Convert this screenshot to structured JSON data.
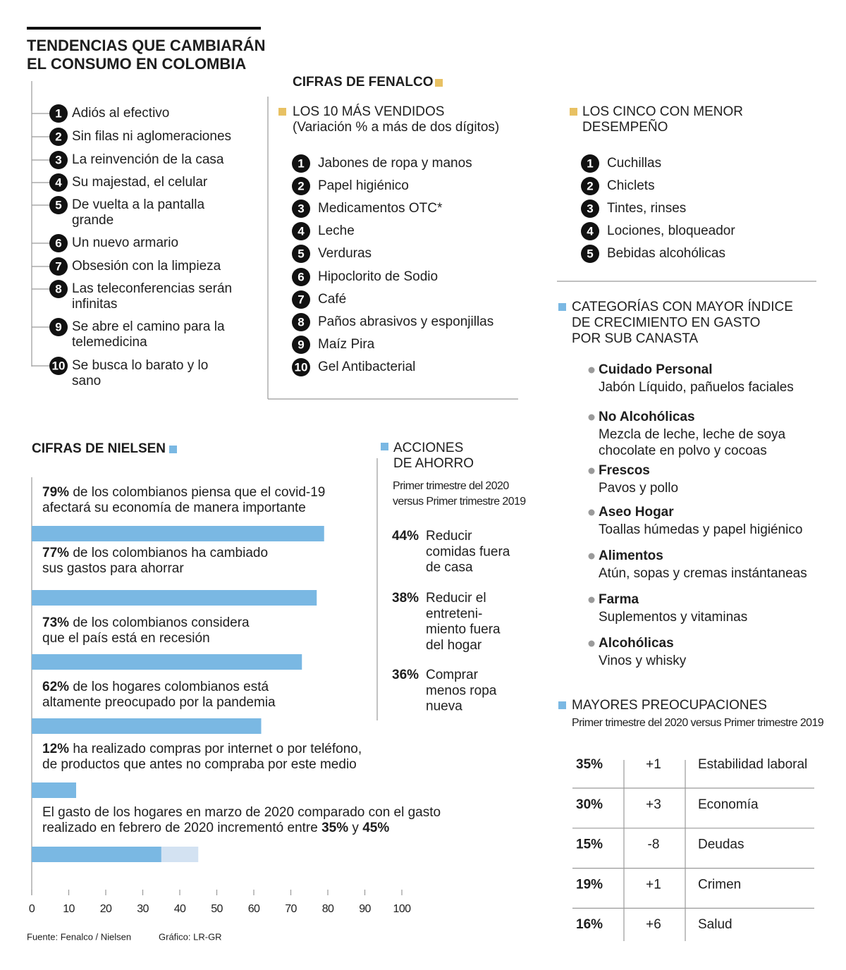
{
  "header": {
    "title_lines": [
      "TENDENCIAS QUE CAMBIARÁN",
      "EL CONSUMO EN COLOMBIA"
    ]
  },
  "trends": [
    {
      "n": 1,
      "lines": [
        "Adiós al efectivo"
      ]
    },
    {
      "n": 2,
      "lines": [
        "Sin filas ni aglomeraciones"
      ]
    },
    {
      "n": 3,
      "lines": [
        "La reinvención de la casa"
      ]
    },
    {
      "n": 4,
      "lines": [
        "Su majestad, el celular"
      ]
    },
    {
      "n": 5,
      "lines": [
        "De vuelta a la pantalla",
        "grande"
      ]
    },
    {
      "n": 6,
      "lines": [
        "Un nuevo armario"
      ]
    },
    {
      "n": 7,
      "lines": [
        "Obsesión con la limpieza"
      ]
    },
    {
      "n": 8,
      "lines": [
        "Las teleconferencias serán",
        "infinitas"
      ]
    },
    {
      "n": 9,
      "lines": [
        "Se abre el camino para la",
        "telemedicina"
      ]
    },
    {
      "n": 10,
      "lines": [
        "Se busca lo barato y lo",
        "sano"
      ]
    }
  ],
  "fenalco": {
    "title": "CIFRAS DE FENALCO",
    "top": {
      "heading_lines": [
        "LOS 10 MÁS VENDIDOS",
        "(Variación % a más de dos dígitos)"
      ],
      "items": [
        {
          "n": 1,
          "text": "Jabones de ropa y manos"
        },
        {
          "n": 2,
          "text": "Papel higiénico"
        },
        {
          "n": 3,
          "text": "Medicamentos OTC*"
        },
        {
          "n": 4,
          "text": "Leche"
        },
        {
          "n": 5,
          "text": "Verduras"
        },
        {
          "n": 6,
          "text": "Hipoclorito de Sodio"
        },
        {
          "n": 7,
          "text": "Café"
        },
        {
          "n": 8,
          "text": "Paños abrasivos y esponjillas"
        },
        {
          "n": 9,
          "text": "Maíz Pira"
        },
        {
          "n": 10,
          "text": "Gel Antibacterial"
        }
      ]
    },
    "bottom": {
      "heading_lines": [
        "LOS CINCO CON MENOR",
        "DESEMPEÑO"
      ],
      "items": [
        {
          "n": 1,
          "text": "Cuchillas"
        },
        {
          "n": 2,
          "text": "Chiclets"
        },
        {
          "n": 3,
          "text": "Tintes, rinses"
        },
        {
          "n": 4,
          "text": "Lociones, bloqueador"
        },
        {
          "n": 5,
          "text": "Bebidas alcohólicas"
        }
      ]
    },
    "categories": {
      "heading_lines": [
        "CATEGORÍAS CON MAYOR ÍNDICE",
        "DE CRECIMIENTO EN GASTO",
        "POR SUB CANASTA"
      ],
      "items": [
        {
          "name": "Cuidado Personal",
          "detail_lines": [
            "Jabón Líquido, pañuelos faciales"
          ]
        },
        {
          "name": "No Alcohólicas",
          "detail_lines": [
            "Mezcla de leche, leche de soya",
            "chocolate en polvo y cocoas"
          ]
        },
        {
          "name": "Frescos",
          "detail_lines": [
            "Pavos y pollo"
          ]
        },
        {
          "name": "Aseo Hogar",
          "detail_lines": [
            "Toallas húmedas y papel higiénico"
          ]
        },
        {
          "name": "Alimentos",
          "detail_lines": [
            "Atún, sopas y cremas instántaneas"
          ]
        },
        {
          "name": "Farma",
          "detail_lines": [
            "Suplementos y vitaminas"
          ]
        },
        {
          "name": "Alcohólicas",
          "detail_lines": [
            "Vinos y whisky"
          ]
        }
      ]
    }
  },
  "nielsen_title": "CIFRAS DE NIELSEN",
  "chart_data": {
    "type": "bar",
    "orientation": "horizontal",
    "color": "#7ab8e3",
    "values": [
      79,
      77,
      73,
      62,
      12,
      35
    ],
    "value_labels": [
      "79%",
      "77%",
      "73%",
      "62%",
      "12%",
      "35%"
    ],
    "descriptions": [
      [
        "de los colombianos piensa que el covid-19",
        "afectará su economía de manera importante"
      ],
      [
        "de los colombianos ha cambiado",
        "sus gastos para ahorrar"
      ],
      [
        "de los colombianos considera",
        "que el país está en recesión"
      ],
      [
        "de los hogares colombianos está",
        "altamente preocupado por la pandemia"
      ],
      [
        "ha realizado compras por internet o por teléfono,",
        "de productos que antes no compraba por este medio"
      ],
      [
        "El gasto de los hogares en marzo de 2020 comparado con el gasto",
        "realizado en febrero de 2020 incrementó entre"
      ]
    ],
    "range_series": {
      "color": "#d3e2f2",
      "connector": "y",
      "values": [
        null,
        null,
        null,
        null,
        null,
        45
      ],
      "value_labels": [
        null,
        null,
        null,
        null,
        null,
        "45%"
      ]
    },
    "xlim": [
      0,
      100
    ],
    "xticks": [
      0,
      10,
      20,
      30,
      40,
      50,
      60,
      70,
      80,
      90,
      100
    ]
  },
  "savings": {
    "heading_lines": [
      "ACCIONES",
      "DE AHORRO"
    ],
    "subtitle_lines": [
      "Primer trimestre del 2020",
      "versus Primer trimestre 2019"
    ],
    "items": [
      {
        "pct": "44%",
        "lines": [
          "Reducir",
          "comidas fuera",
          "de casa"
        ]
      },
      {
        "pct": "38%",
        "lines": [
          "Reducir el",
          "entreteni-",
          "miento fuera",
          "del hogar"
        ]
      },
      {
        "pct": "36%",
        "lines": [
          "Comprar",
          "menos ropa",
          "nueva"
        ]
      }
    ]
  },
  "concerns": {
    "heading": "MAYORES PREOCUPACIONES",
    "subtitle": "Primer trimestre del 2020 versus Primer trimestre 2019",
    "rows": [
      [
        "35%",
        "+1",
        "Estabilidad laboral"
      ],
      [
        "30%",
        "+3",
        "Economía"
      ],
      [
        "15%",
        "-8",
        "Deudas"
      ],
      [
        "19%",
        "+1",
        "Crimen"
      ],
      [
        "16%",
        "+6",
        "Salud"
      ]
    ]
  },
  "footer": {
    "source": "Fuente:  Fenalco / Nielsen",
    "credit": "Gráfico: LR-GR"
  }
}
